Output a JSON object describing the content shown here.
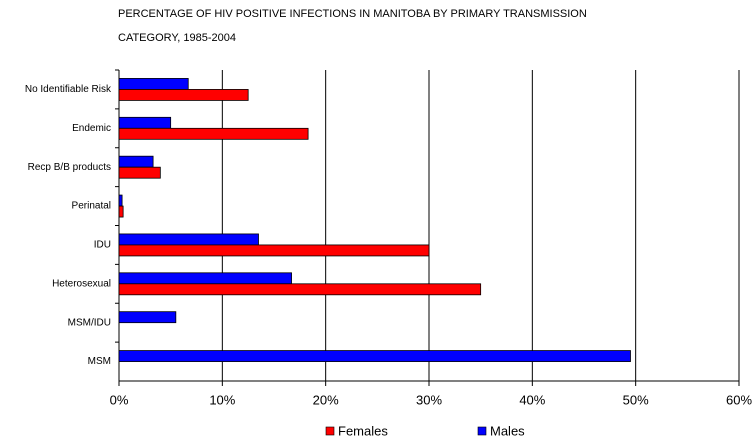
{
  "chart_data": {
    "type": "hbar",
    "title": [
      "PERCENTAGE OF HIV POSITIVE INFECTIONS IN MANITOBA BY PRIMARY TRANSMISSION",
      "CATEGORY, 1985-2004"
    ],
    "categories": [
      "No Identifiable Risk",
      "Endemic",
      "Recp B/B products",
      "Perinatal",
      "IDU",
      "Heterosexual",
      "MSM/IDU",
      "MSM"
    ],
    "series": [
      {
        "name": "Females",
        "color": "#ff0000",
        "values": [
          12.5,
          18.3,
          4.0,
          0.4,
          30.0,
          35.0,
          0,
          0
        ]
      },
      {
        "name": "Males",
        "color": "#0000ff",
        "values": [
          6.7,
          5.0,
          3.3,
          0.3,
          13.5,
          16.7,
          5.5,
          49.5
        ]
      }
    ],
    "xlim": [
      0,
      60
    ],
    "xticks": [
      {
        "value": 0,
        "label": "0%"
      },
      {
        "value": 10,
        "label": "10%"
      },
      {
        "value": 20,
        "label": "20%"
      },
      {
        "value": 30,
        "label": "30%"
      },
      {
        "value": 40,
        "label": "40%"
      },
      {
        "value": 50,
        "label": "50%"
      },
      {
        "value": 60,
        "label": "60%"
      }
    ],
    "grid": true,
    "legend": "bottom"
  }
}
